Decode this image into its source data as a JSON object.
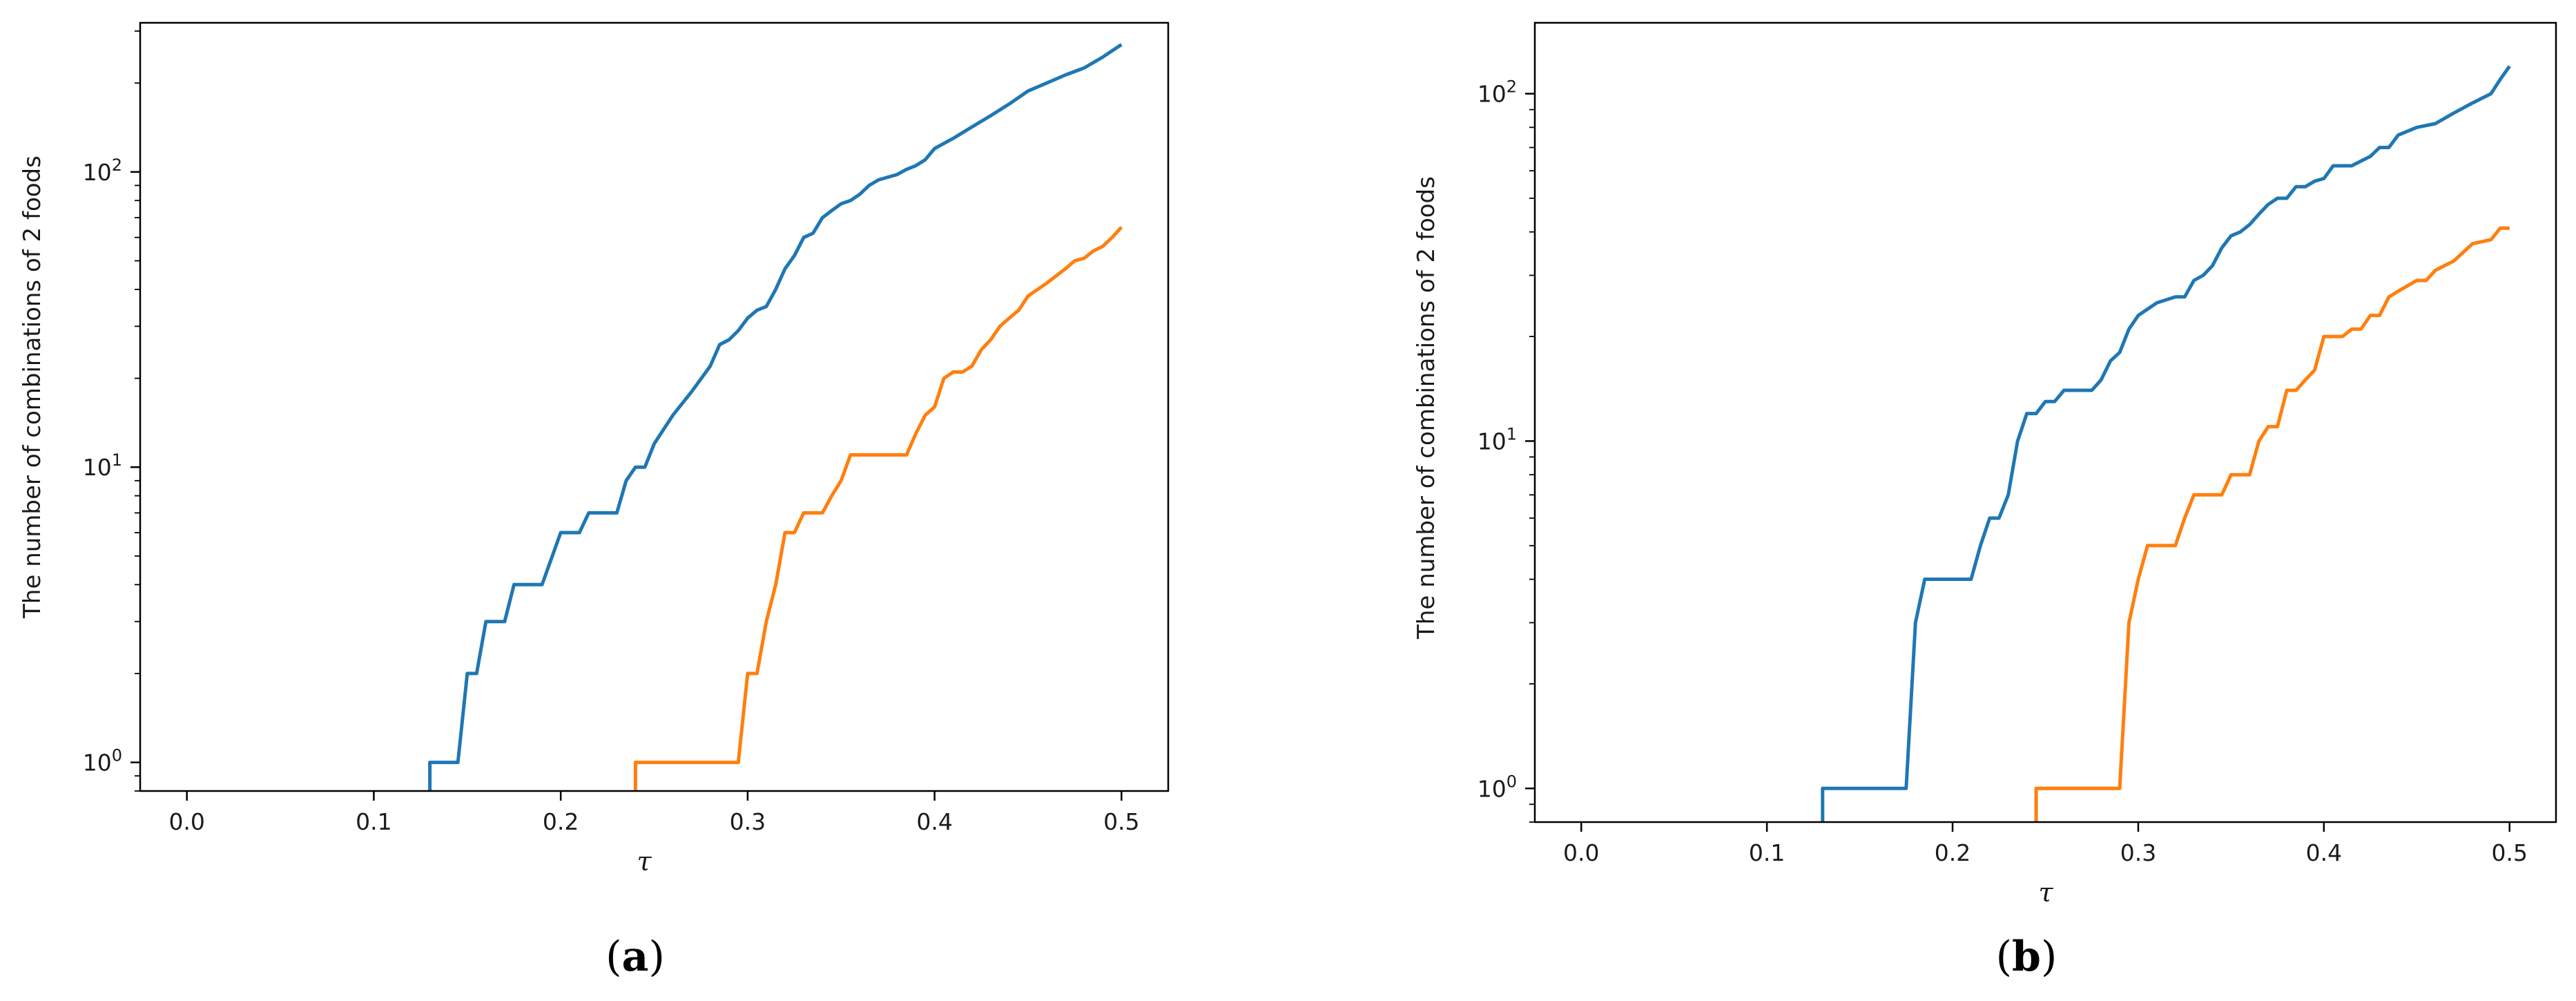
{
  "chart_data": [
    {
      "id": "a",
      "type": "line",
      "caption": "(a)",
      "caption_letter": "a",
      "xlabel": "τ",
      "ylabel": "The number of combinations of 2 foods",
      "yscale": "log",
      "xlim": [
        -0.025,
        0.525
      ],
      "ylim": [
        0.8,
        320
      ],
      "xticks": [
        0.0,
        0.1,
        0.2,
        0.3,
        0.4,
        0.5
      ],
      "xtick_labels": [
        "0.0",
        "0.1",
        "0.2",
        "0.3",
        "0.4",
        "0.5"
      ],
      "yticks": [
        1,
        10,
        100
      ],
      "ytick_labels": [
        "10",
        "10",
        "10"
      ],
      "ytick_exponents": [
        "0",
        "1",
        "2"
      ],
      "grid": false,
      "series": [
        {
          "color": "#1f77b4",
          "points": [
            [
              0.13,
              0.8
            ],
            [
              0.13,
              1
            ],
            [
              0.145,
              1
            ],
            [
              0.15,
              2
            ],
            [
              0.155,
              2
            ],
            [
              0.16,
              3
            ],
            [
              0.17,
              3
            ],
            [
              0.175,
              4
            ],
            [
              0.19,
              4
            ],
            [
              0.2,
              6
            ],
            [
              0.21,
              6
            ],
            [
              0.215,
              7
            ],
            [
              0.23,
              7
            ],
            [
              0.235,
              9
            ],
            [
              0.24,
              10
            ],
            [
              0.245,
              10
            ],
            [
              0.25,
              12
            ],
            [
              0.26,
              15
            ],
            [
              0.27,
              18
            ],
            [
              0.28,
              22
            ],
            [
              0.285,
              26
            ],
            [
              0.29,
              27
            ],
            [
              0.295,
              29
            ],
            [
              0.3,
              32
            ],
            [
              0.305,
              34
            ],
            [
              0.31,
              35
            ],
            [
              0.315,
              40
            ],
            [
              0.32,
              47
            ],
            [
              0.325,
              52
            ],
            [
              0.33,
              60
            ],
            [
              0.335,
              62
            ],
            [
              0.34,
              70
            ],
            [
              0.345,
              74
            ],
            [
              0.35,
              78
            ],
            [
              0.355,
              80
            ],
            [
              0.36,
              84
            ],
            [
              0.365,
              90
            ],
            [
              0.37,
              94
            ],
            [
              0.375,
              96
            ],
            [
              0.38,
              98
            ],
            [
              0.385,
              102
            ],
            [
              0.39,
              105
            ],
            [
              0.395,
              110
            ],
            [
              0.4,
              120
            ],
            [
              0.41,
              130
            ],
            [
              0.42,
              142
            ],
            [
              0.43,
              155
            ],
            [
              0.44,
              170
            ],
            [
              0.45,
              188
            ],
            [
              0.46,
              200
            ],
            [
              0.47,
              213
            ],
            [
              0.48,
              225
            ],
            [
              0.49,
              245
            ],
            [
              0.5,
              270
            ]
          ]
        },
        {
          "color": "#ff7f0e",
          "points": [
            [
              0.24,
              0.8
            ],
            [
              0.24,
              1
            ],
            [
              0.295,
              1
            ],
            [
              0.3,
              2
            ],
            [
              0.305,
              2
            ],
            [
              0.31,
              3
            ],
            [
              0.315,
              4
            ],
            [
              0.32,
              6
            ],
            [
              0.325,
              6
            ],
            [
              0.33,
              7
            ],
            [
              0.34,
              7
            ],
            [
              0.345,
              8
            ],
            [
              0.35,
              9
            ],
            [
              0.355,
              11
            ],
            [
              0.385,
              11
            ],
            [
              0.39,
              13
            ],
            [
              0.395,
              15
            ],
            [
              0.4,
              16
            ],
            [
              0.405,
              20
            ],
            [
              0.41,
              21
            ],
            [
              0.415,
              21
            ],
            [
              0.42,
              22
            ],
            [
              0.425,
              25
            ],
            [
              0.43,
              27
            ],
            [
              0.435,
              30
            ],
            [
              0.44,
              32
            ],
            [
              0.445,
              34
            ],
            [
              0.45,
              38
            ],
            [
              0.46,
              42
            ],
            [
              0.47,
              47
            ],
            [
              0.475,
              50
            ],
            [
              0.48,
              51
            ],
            [
              0.485,
              54
            ],
            [
              0.49,
              56
            ],
            [
              0.495,
              60
            ],
            [
              0.5,
              65
            ]
          ]
        }
      ]
    },
    {
      "id": "b",
      "type": "line",
      "caption": "(b)",
      "caption_letter": "b",
      "xlabel": "τ",
      "ylabel": "The number of combinations of 2 foods",
      "yscale": "log",
      "xlim": [
        -0.025,
        0.525
      ],
      "ylim": [
        0.8,
        160
      ],
      "xticks": [
        0.0,
        0.1,
        0.2,
        0.3,
        0.4,
        0.5
      ],
      "xtick_labels": [
        "0.0",
        "0.1",
        "0.2",
        "0.3",
        "0.4",
        "0.5"
      ],
      "yticks": [
        1,
        10,
        100
      ],
      "ytick_labels": [
        "10",
        "10",
        "10"
      ],
      "ytick_exponents": [
        "0",
        "1",
        "2"
      ],
      "grid": false,
      "series": [
        {
          "color": "#1f77b4",
          "points": [
            [
              0.13,
              0.8
            ],
            [
              0.13,
              1
            ],
            [
              0.175,
              1
            ],
            [
              0.18,
              3
            ],
            [
              0.185,
              4
            ],
            [
              0.21,
              4
            ],
            [
              0.215,
              5
            ],
            [
              0.22,
              6
            ],
            [
              0.225,
              6
            ],
            [
              0.23,
              7
            ],
            [
              0.235,
              10
            ],
            [
              0.24,
              12
            ],
            [
              0.245,
              12
            ],
            [
              0.25,
              13
            ],
            [
              0.255,
              13
            ],
            [
              0.26,
              14
            ],
            [
              0.275,
              14
            ],
            [
              0.28,
              15
            ],
            [
              0.285,
              17
            ],
            [
              0.29,
              18
            ],
            [
              0.295,
              21
            ],
            [
              0.3,
              23
            ],
            [
              0.31,
              25
            ],
            [
              0.32,
              26
            ],
            [
              0.325,
              26
            ],
            [
              0.33,
              29
            ],
            [
              0.335,
              30
            ],
            [
              0.34,
              32
            ],
            [
              0.345,
              36
            ],
            [
              0.35,
              39
            ],
            [
              0.355,
              40
            ],
            [
              0.36,
              42
            ],
            [
              0.365,
              45
            ],
            [
              0.37,
              48
            ],
            [
              0.375,
              50
            ],
            [
              0.38,
              50
            ],
            [
              0.385,
              54
            ],
            [
              0.39,
              54
            ],
            [
              0.395,
              56
            ],
            [
              0.4,
              57
            ],
            [
              0.405,
              62
            ],
            [
              0.415,
              62
            ],
            [
              0.42,
              64
            ],
            [
              0.425,
              66
            ],
            [
              0.43,
              70
            ],
            [
              0.435,
              70
            ],
            [
              0.44,
              76
            ],
            [
              0.45,
              80
            ],
            [
              0.46,
              82
            ],
            [
              0.47,
              88
            ],
            [
              0.48,
              94
            ],
            [
              0.49,
              100
            ],
            [
              0.495,
              110
            ],
            [
              0.5,
              120
            ]
          ]
        },
        {
          "color": "#ff7f0e",
          "points": [
            [
              0.245,
              0.8
            ],
            [
              0.245,
              1
            ],
            [
              0.29,
              1
            ],
            [
              0.295,
              3
            ],
            [
              0.3,
              4
            ],
            [
              0.305,
              5
            ],
            [
              0.32,
              5
            ],
            [
              0.325,
              6
            ],
            [
              0.33,
              7
            ],
            [
              0.345,
              7
            ],
            [
              0.35,
              8
            ],
            [
              0.36,
              8
            ],
            [
              0.365,
              10
            ],
            [
              0.37,
              11
            ],
            [
              0.375,
              11
            ],
            [
              0.38,
              14
            ],
            [
              0.385,
              14
            ],
            [
              0.39,
              15
            ],
            [
              0.395,
              16
            ],
            [
              0.4,
              20
            ],
            [
              0.41,
              20
            ],
            [
              0.415,
              21
            ],
            [
              0.42,
              21
            ],
            [
              0.425,
              23
            ],
            [
              0.43,
              23
            ],
            [
              0.435,
              26
            ],
            [
              0.44,
              27
            ],
            [
              0.45,
              29
            ],
            [
              0.455,
              29
            ],
            [
              0.46,
              31
            ],
            [
              0.47,
              33
            ],
            [
              0.48,
              37
            ],
            [
              0.49,
              38
            ],
            [
              0.495,
              41
            ],
            [
              0.5,
              41
            ]
          ]
        }
      ]
    }
  ]
}
